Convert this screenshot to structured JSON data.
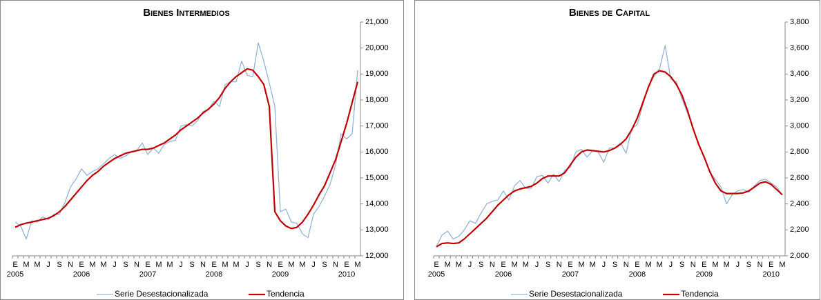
{
  "chart_data": [
    {
      "type": "line",
      "title": "Bienes Intermedios",
      "categories": [
        "E",
        null,
        "M",
        null,
        "M",
        null,
        "J",
        null,
        "S",
        null,
        "N",
        null,
        "E",
        null,
        "M",
        null,
        "M",
        null,
        "J",
        null,
        "S",
        null,
        "N",
        null,
        "E",
        null,
        "M",
        null,
        "M",
        null,
        "J",
        null,
        "S",
        null,
        "N",
        null,
        "E",
        null,
        "M",
        null,
        "M",
        null,
        "J",
        null,
        "S",
        null,
        "N",
        null,
        "E",
        null,
        "M",
        null,
        "M",
        null,
        "J",
        null,
        "S",
        null,
        "N",
        null,
        "E",
        null,
        "M"
      ],
      "year_labels": [
        "2005",
        "2006",
        "2007",
        "2008",
        "2009",
        "2010"
      ],
      "series": [
        {
          "name": "Serie Desestacionalizada",
          "color": "#95B3D7",
          "values": [
            13300,
            13150,
            12650,
            13350,
            13300,
            13500,
            13400,
            13600,
            13600,
            14050,
            14650,
            14950,
            15350,
            15100,
            15250,
            15350,
            15550,
            15750,
            15900,
            15750,
            15850,
            16000,
            16050,
            16350,
            15900,
            16150,
            15950,
            16300,
            16400,
            16450,
            17000,
            17050,
            17000,
            17200,
            17550,
            17650,
            17950,
            17750,
            18600,
            18700,
            18700,
            19500,
            18950,
            18900,
            20200,
            19500,
            18650,
            17750,
            13700,
            13800,
            13300,
            13250,
            12850,
            12700,
            13600,
            13900,
            14300,
            14750,
            15500,
            16700,
            16500,
            16700,
            19150
          ]
        },
        {
          "name": "Tendencia",
          "color": "#C00000",
          "values": [
            13100,
            13200,
            13260,
            13300,
            13350,
            13400,
            13450,
            13550,
            13700,
            13900,
            14150,
            14400,
            14650,
            14900,
            15100,
            15250,
            15450,
            15600,
            15750,
            15850,
            15950,
            16000,
            16050,
            16100,
            16100,
            16150,
            16250,
            16350,
            16500,
            16650,
            16850,
            17000,
            17150,
            17300,
            17500,
            17650,
            17850,
            18100,
            18450,
            18700,
            18900,
            19050,
            19200,
            19150,
            18900,
            18600,
            17750,
            13700,
            13350,
            13150,
            13050,
            13100,
            13300,
            13600,
            13950,
            14350,
            14700,
            15200,
            15700,
            16400,
            17100,
            17900,
            18700
          ]
        }
      ],
      "ylim": [
        12000,
        21000
      ],
      "yticks": [
        {
          "value": 12000,
          "label": "12,000"
        },
        {
          "value": 13000,
          "label": "13,000"
        },
        {
          "value": 14000,
          "label": "14,000"
        },
        {
          "value": 15000,
          "label": "15,000"
        },
        {
          "value": 16000,
          "label": "16,000"
        },
        {
          "value": 17000,
          "label": "17,000"
        },
        {
          "value": 18000,
          "label": "18,000"
        },
        {
          "value": 19000,
          "label": "19,000"
        },
        {
          "value": 20000,
          "label": "20,000"
        },
        {
          "value": 21000,
          "label": "21,000"
        }
      ]
    },
    {
      "type": "line",
      "title": "Bienes de Capital",
      "categories": [
        "E",
        null,
        "M",
        null,
        "M",
        null,
        "J",
        null,
        "S",
        null,
        "N",
        null,
        "E",
        null,
        "M",
        null,
        "M",
        null,
        "J",
        null,
        "S",
        null,
        "N",
        null,
        "E",
        null,
        "M",
        null,
        "M",
        null,
        "J",
        null,
        "S",
        null,
        "N",
        null,
        "E",
        null,
        "M",
        null,
        "M",
        null,
        "J",
        null,
        "S",
        null,
        "N",
        null,
        "E",
        null,
        "M",
        null,
        "M",
        null,
        "J",
        null,
        "S",
        null,
        "N",
        null,
        "E",
        null,
        "M"
      ],
      "year_labels": [
        "2005",
        "2006",
        "2007",
        "2008",
        "2009",
        "2010"
      ],
      "series": [
        {
          "name": "Serie Desestacionalizada",
          "color": "#95B3D7",
          "values": [
            2070,
            2160,
            2190,
            2130,
            2150,
            2200,
            2270,
            2250,
            2330,
            2400,
            2420,
            2430,
            2500,
            2430,
            2540,
            2580,
            2520,
            2520,
            2610,
            2620,
            2560,
            2630,
            2570,
            2660,
            2680,
            2800,
            2820,
            2760,
            2810,
            2800,
            2720,
            2830,
            2830,
            2870,
            2790,
            2980,
            3010,
            3160,
            3310,
            3380,
            3440,
            3620,
            3360,
            3340,
            3210,
            3100,
            2990,
            2850,
            2770,
            2640,
            2590,
            2530,
            2400,
            2470,
            2500,
            2510,
            2490,
            2540,
            2580,
            2590,
            2560,
            2530,
            2470
          ]
        },
        {
          "name": "Tendencia",
          "color": "#C00000",
          "values": [
            2070,
            2095,
            2100,
            2095,
            2100,
            2130,
            2170,
            2210,
            2250,
            2290,
            2340,
            2390,
            2430,
            2470,
            2500,
            2515,
            2525,
            2535,
            2560,
            2595,
            2615,
            2615,
            2615,
            2640,
            2700,
            2760,
            2800,
            2815,
            2810,
            2805,
            2800,
            2810,
            2830,
            2860,
            2900,
            2970,
            3060,
            3180,
            3300,
            3400,
            3425,
            3415,
            3380,
            3320,
            3240,
            3120,
            2980,
            2860,
            2760,
            2650,
            2560,
            2500,
            2480,
            2480,
            2480,
            2485,
            2500,
            2530,
            2560,
            2570,
            2550,
            2510,
            2470
          ]
        }
      ],
      "ylim": [
        2000,
        3800
      ],
      "yticks": [
        {
          "value": 2000,
          "label": "2,000"
        },
        {
          "value": 2200,
          "label": "2,200"
        },
        {
          "value": 2400,
          "label": "2,400"
        },
        {
          "value": 2600,
          "label": "2,600"
        },
        {
          "value": 2800,
          "label": "2,800"
        },
        {
          "value": 3000,
          "label": "3,000"
        },
        {
          "value": 3200,
          "label": "3,200"
        },
        {
          "value": 3400,
          "label": "3,400"
        },
        {
          "value": 3600,
          "label": "3,600"
        },
        {
          "value": 3800,
          "label": "3,800"
        }
      ]
    }
  ]
}
